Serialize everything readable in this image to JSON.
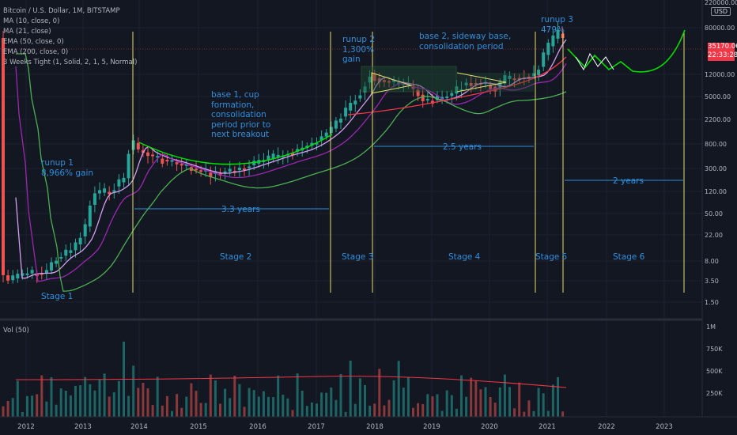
{
  "header": {
    "title": "Bitcoin / U.S. Dollar, 1M, BITSTAMP",
    "indicators": [
      "MA (10, close, 0)",
      "MA (21, close)",
      "EMA (50, close, 0)",
      "EMA (200, close, 0)",
      "3 Weeks Tight (1, Solid, 2, 1, 5, Normal)"
    ]
  },
  "price_axis": {
    "currency": "USD",
    "ticks": [
      "220000.00",
      "80000.00",
      "12000.00",
      "5000.00",
      "2200.00",
      "800.00",
      "300.00",
      "120.00",
      "50.00",
      "22.00",
      "8.00",
      "3.50",
      "1.50"
    ],
    "current_price": "35170.06",
    "countdown": "22:33:28"
  },
  "time_axis": {
    "ticks": [
      "2012",
      "2013",
      "2014",
      "2015",
      "2016",
      "2017",
      "2018",
      "2019",
      "2020",
      "2021",
      "2022",
      "2023"
    ]
  },
  "volume_pane": {
    "label": "Vol (50)",
    "ticks": [
      "1M",
      "750K",
      "500K",
      "250K"
    ]
  },
  "annotations": {
    "runup1": [
      "runup 1",
      "8,966% gain"
    ],
    "base1": [
      "base 1, cup",
      "formation,",
      "consolidation",
      "period prior to",
      "next breakout"
    ],
    "runup2": [
      "runup 2",
      "1,300%",
      "gain"
    ],
    "base2": [
      "base 2, sideway base,",
      "consolidation period"
    ],
    "runup3": [
      "runup 3",
      "479%"
    ],
    "dur1": "3.3 years",
    "dur2": "2.5 years",
    "dur3": "2 years",
    "stages": [
      "Stage 1",
      "Stage 2",
      "Stage 3",
      "Stage 4",
      "Stage 5",
      "Stage 6"
    ]
  },
  "colors": {
    "background": "#131722",
    "up": "#26a69a",
    "down": "#ef5350",
    "ma10": "#d39ef0",
    "ma21": "#9c27b0",
    "ema50": "#4caf50",
    "ema200": "#f23645",
    "annotation": "#2f8fdc",
    "stage_line": "#e9dd6f",
    "projection": "#00e000"
  }
}
